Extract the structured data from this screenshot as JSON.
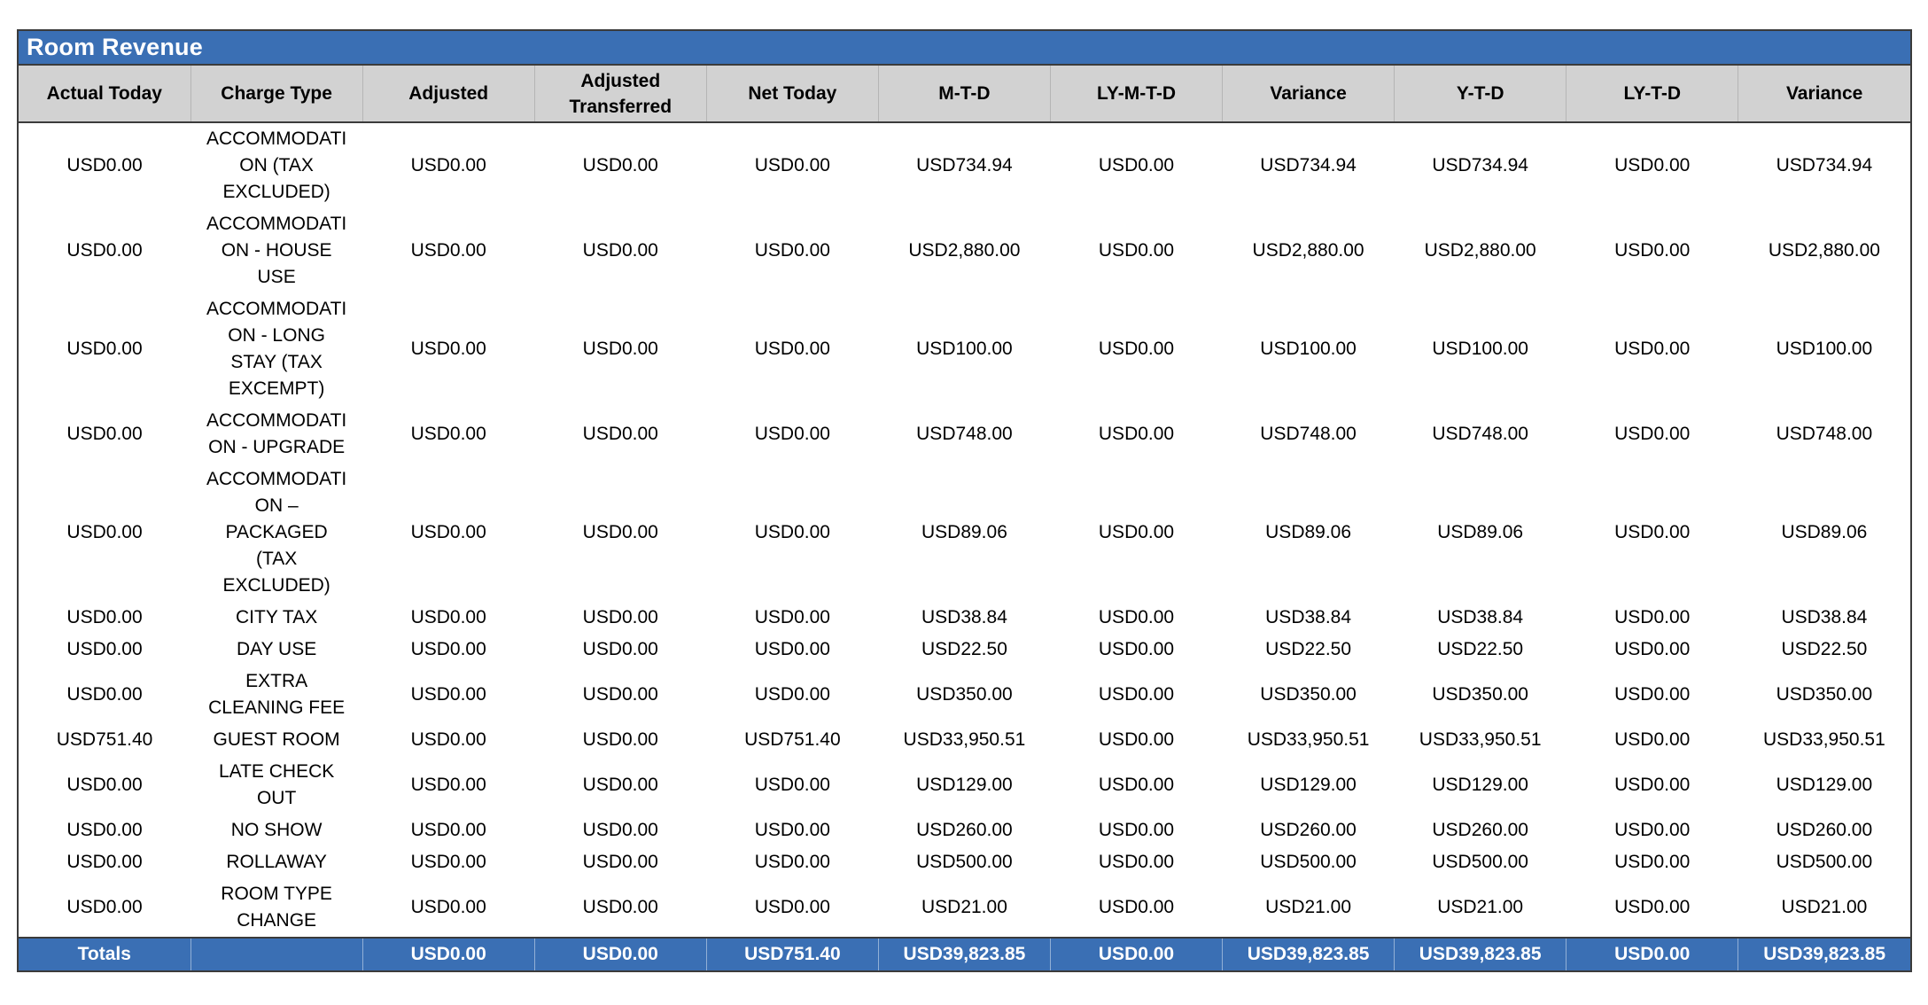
{
  "report": {
    "title": "Room Revenue"
  },
  "colors": {
    "header_blue": "#3a6fb4",
    "column_header_gray": "#d2d2d2",
    "border_dark": "#3b3b3b",
    "body_text": "#000000",
    "title_text": "#ffffff"
  },
  "table": {
    "columns": [
      "Actual Today",
      "Charge Type",
      "Adjusted",
      "Adjusted Transferred",
      "Net Today",
      "M-T-D",
      "LY-M-T-D",
      "Variance",
      "Y-T-D",
      "LY-T-D",
      "Variance"
    ],
    "rows": [
      [
        "USD0.00",
        "ACCOMMODATION (TAX EXCLUDED)",
        "USD0.00",
        "USD0.00",
        "USD0.00",
        "USD734.94",
        "USD0.00",
        "USD734.94",
        "USD734.94",
        "USD0.00",
        "USD734.94"
      ],
      [
        "USD0.00",
        "ACCOMMODATION - HOUSE USE",
        "USD0.00",
        "USD0.00",
        "USD0.00",
        "USD2,880.00",
        "USD0.00",
        "USD2,880.00",
        "USD2,880.00",
        "USD0.00",
        "USD2,880.00"
      ],
      [
        "USD0.00",
        "ACCOMMODATION - LONG STAY (TAX EXCEMPT)",
        "USD0.00",
        "USD0.00",
        "USD0.00",
        "USD100.00",
        "USD0.00",
        "USD100.00",
        "USD100.00",
        "USD0.00",
        "USD100.00"
      ],
      [
        "USD0.00",
        "ACCOMMODATION - UPGRADE",
        "USD0.00",
        "USD0.00",
        "USD0.00",
        "USD748.00",
        "USD0.00",
        "USD748.00",
        "USD748.00",
        "USD0.00",
        "USD748.00"
      ],
      [
        "USD0.00",
        "ACCOMMODATION – PACKAGED (TAX EXCLUDED)",
        "USD0.00",
        "USD0.00",
        "USD0.00",
        "USD89.06",
        "USD0.00",
        "USD89.06",
        "USD89.06",
        "USD0.00",
        "USD89.06"
      ],
      [
        "USD0.00",
        "CITY TAX",
        "USD0.00",
        "USD0.00",
        "USD0.00",
        "USD38.84",
        "USD0.00",
        "USD38.84",
        "USD38.84",
        "USD0.00",
        "USD38.84"
      ],
      [
        "USD0.00",
        "DAY USE",
        "USD0.00",
        "USD0.00",
        "USD0.00",
        "USD22.50",
        "USD0.00",
        "USD22.50",
        "USD22.50",
        "USD0.00",
        "USD22.50"
      ],
      [
        "USD0.00",
        "EXTRA CLEANING FEE",
        "USD0.00",
        "USD0.00",
        "USD0.00",
        "USD350.00",
        "USD0.00",
        "USD350.00",
        "USD350.00",
        "USD0.00",
        "USD350.00"
      ],
      [
        "USD751.40",
        "GUEST ROOM",
        "USD0.00",
        "USD0.00",
        "USD751.40",
        "USD33,950.51",
        "USD0.00",
        "USD33,950.51",
        "USD33,950.51",
        "USD0.00",
        "USD33,950.51"
      ],
      [
        "USD0.00",
        "LATE CHECK OUT",
        "USD0.00",
        "USD0.00",
        "USD0.00",
        "USD129.00",
        "USD0.00",
        "USD129.00",
        "USD129.00",
        "USD0.00",
        "USD129.00"
      ],
      [
        "USD0.00",
        "NO SHOW",
        "USD0.00",
        "USD0.00",
        "USD0.00",
        "USD260.00",
        "USD0.00",
        "USD260.00",
        "USD260.00",
        "USD0.00",
        "USD260.00"
      ],
      [
        "USD0.00",
        "ROLLAWAY",
        "USD0.00",
        "USD0.00",
        "USD0.00",
        "USD500.00",
        "USD0.00",
        "USD500.00",
        "USD500.00",
        "USD0.00",
        "USD500.00"
      ],
      [
        "USD0.00",
        "ROOM TYPE CHANGE",
        "USD0.00",
        "USD0.00",
        "USD0.00",
        "USD21.00",
        "USD0.00",
        "USD21.00",
        "USD21.00",
        "USD0.00",
        "USD21.00"
      ]
    ],
    "totals": [
      "Totals",
      "",
      "USD0.00",
      "USD0.00",
      "USD751.40",
      "USD39,823.85",
      "USD0.00",
      "USD39,823.85",
      "USD39,823.85",
      "USD0.00",
      "USD39,823.85"
    ]
  }
}
